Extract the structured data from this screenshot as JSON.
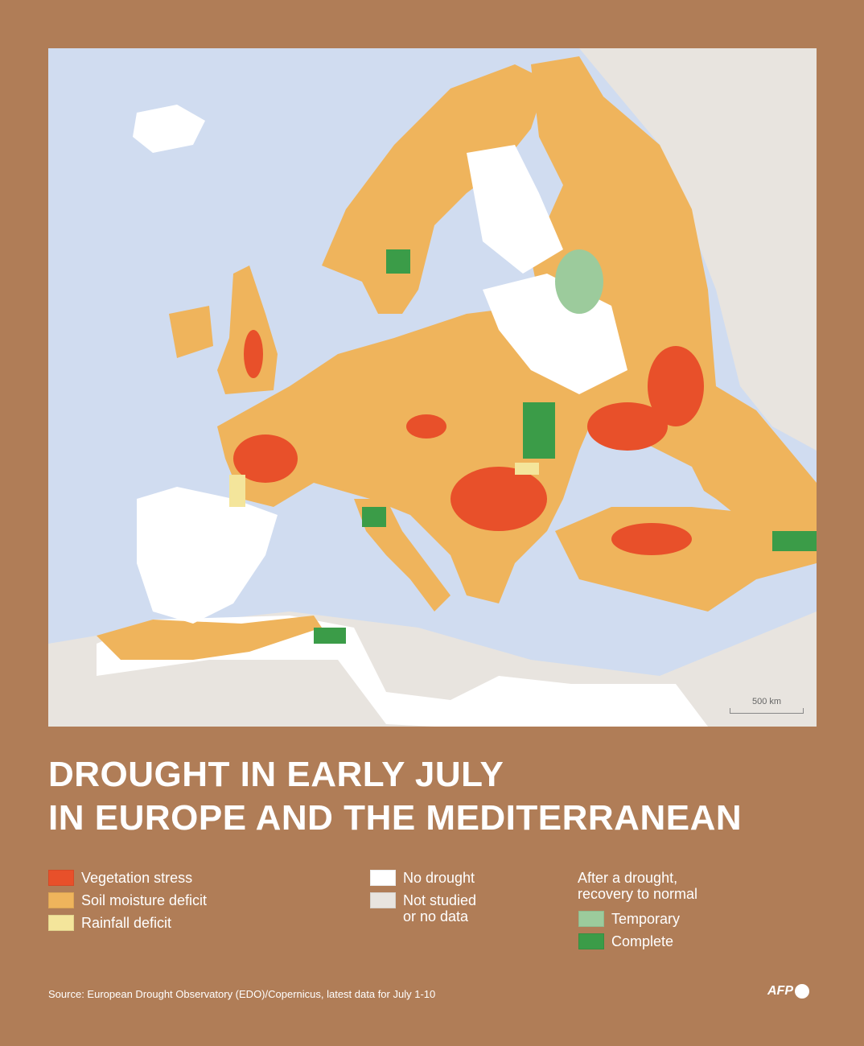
{
  "title_lines": [
    "DROUGHT IN EARLY JULY",
    "IN EUROPE AND THE MEDITERRANEAN"
  ],
  "scale_label": "500 km",
  "legend": {
    "drought": [
      {
        "label": "Vegetation stress",
        "color": "#e8502a"
      },
      {
        "label": "Soil moisture deficit",
        "color": "#efb45c"
      },
      {
        "label": "Rainfall deficit",
        "color": "#f4e59b"
      }
    ],
    "other": [
      {
        "label": "No drought",
        "color": "#ffffff"
      },
      {
        "label_lines": [
          "Not studied",
          "or no data"
        ],
        "color": "#e8e4df"
      }
    ],
    "recovery_heading_lines": [
      "After a drought,",
      "recovery to normal"
    ],
    "recovery": [
      {
        "label": "Temporary",
        "color": "#9ccb9c"
      },
      {
        "label": "Complete",
        "color": "#3b9c48"
      }
    ]
  },
  "source": "Source: European Drought Observatory (EDO)/Copernicus, latest data for July 1-10",
  "logo": "AFP"
}
